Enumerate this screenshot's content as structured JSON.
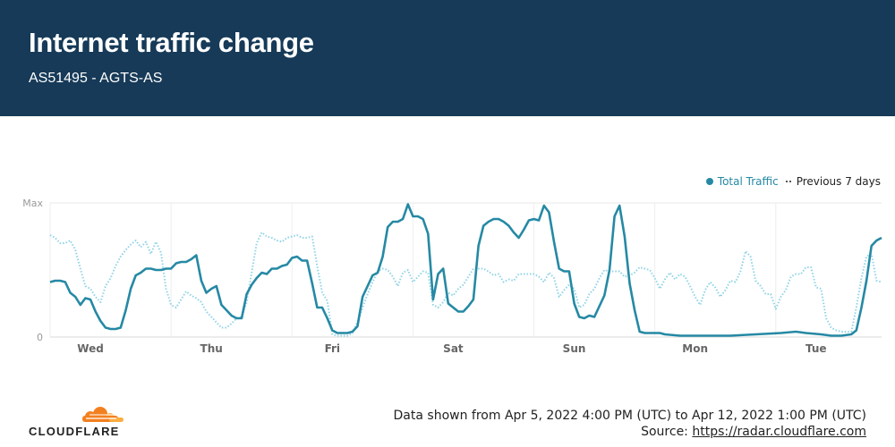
{
  "header": {
    "title": "Internet traffic change",
    "subtitle": "AS51495 - AGTS-AS"
  },
  "legend": {
    "total_label": "Total Traffic",
    "previous_label": "Previous 7 days"
  },
  "footer": {
    "range_text": "Data shown from Apr 5, 2022 4:00 PM (UTC) to Apr 12, 2022 1:00 PM (UTC)",
    "source_prefix": "Source: ",
    "source_link": "https://radar.cloudflare.com"
  },
  "logo": {
    "wordmark": "CLOUDFLARE",
    "icon": "cloud-icon"
  },
  "colors": {
    "header_bg": "#163a58",
    "total": "#2589a4",
    "previous": "#8fd3e6",
    "logo_orange": "#f38020",
    "logo_light": "#fbad41"
  },
  "chart_data": {
    "type": "line",
    "title": "Internet traffic change",
    "x_unit": "hours since Apr 5, 2022 4:00 PM (UTC)",
    "x_ticks": [
      {
        "x": 8,
        "label": "Wed"
      },
      {
        "x": 32,
        "label": "Thu"
      },
      {
        "x": 56,
        "label": "Fri"
      },
      {
        "x": 80,
        "label": "Sat"
      },
      {
        "x": 104,
        "label": "Sun"
      },
      {
        "x": 128,
        "label": "Mon"
      },
      {
        "x": 152,
        "label": "Tue"
      }
    ],
    "y_ticks": [
      {
        "y": 0,
        "label": "0"
      },
      {
        "y": 100,
        "label": "Max"
      }
    ],
    "ylim": [
      0,
      100
    ],
    "xlim": [
      0,
      165
    ],
    "grid": true,
    "legend_position": "top-right",
    "series": [
      {
        "name": "Total Traffic",
        "style": "solid",
        "points": [
          [
            0,
            41
          ],
          [
            1,
            42
          ],
          [
            2,
            42
          ],
          [
            3,
            41
          ],
          [
            4,
            33
          ],
          [
            5,
            30
          ],
          [
            6,
            24
          ],
          [
            7,
            29
          ],
          [
            8,
            28
          ],
          [
            9,
            19
          ],
          [
            10,
            12
          ],
          [
            11,
            7
          ],
          [
            12,
            6
          ],
          [
            13,
            6
          ],
          [
            14,
            7
          ],
          [
            15,
            20
          ],
          [
            16,
            36
          ],
          [
            17,
            46
          ],
          [
            18,
            48
          ],
          [
            19,
            51
          ],
          [
            20,
            51
          ],
          [
            21,
            50
          ],
          [
            22,
            50
          ],
          [
            23,
            51
          ],
          [
            24,
            51
          ],
          [
            25,
            55
          ],
          [
            26,
            56
          ],
          [
            27,
            56
          ],
          [
            28,
            58
          ],
          [
            29,
            61
          ],
          [
            30,
            42
          ],
          [
            31,
            33
          ],
          [
            32,
            36
          ],
          [
            33,
            38
          ],
          [
            34,
            24
          ],
          [
            35,
            20
          ],
          [
            36,
            16
          ],
          [
            37,
            14
          ],
          [
            38,
            14
          ],
          [
            39,
            32
          ],
          [
            40,
            39
          ],
          [
            41,
            44
          ],
          [
            42,
            48
          ],
          [
            43,
            47
          ],
          [
            44,
            51
          ],
          [
            45,
            51
          ],
          [
            46,
            53
          ],
          [
            47,
            54
          ],
          [
            48,
            59
          ],
          [
            49,
            60
          ],
          [
            50,
            57
          ],
          [
            51,
            57
          ],
          [
            52,
            40
          ],
          [
            53,
            22
          ],
          [
            54,
            22
          ],
          [
            55,
            14
          ],
          [
            56,
            5
          ],
          [
            57,
            3
          ],
          [
            58,
            3
          ],
          [
            59,
            3
          ],
          [
            60,
            4
          ],
          [
            61,
            8
          ],
          [
            62,
            30
          ],
          [
            63,
            38
          ],
          [
            64,
            46
          ],
          [
            65,
            48
          ],
          [
            66,
            60
          ],
          [
            67,
            82
          ],
          [
            68,
            86
          ],
          [
            69,
            86
          ],
          [
            70,
            88
          ],
          [
            71,
            99
          ],
          [
            72,
            90
          ],
          [
            73,
            90
          ],
          [
            74,
            88
          ],
          [
            75,
            77
          ],
          [
            76,
            28
          ],
          [
            77,
            47
          ],
          [
            78,
            51
          ],
          [
            79,
            25
          ],
          [
            80,
            22
          ],
          [
            81,
            19
          ],
          [
            82,
            19
          ],
          [
            83,
            23
          ],
          [
            84,
            28
          ],
          [
            85,
            68
          ],
          [
            86,
            83
          ],
          [
            87,
            86
          ],
          [
            88,
            88
          ],
          [
            89,
            88
          ],
          [
            90,
            86
          ],
          [
            91,
            83
          ],
          [
            92,
            78
          ],
          [
            93,
            74
          ],
          [
            94,
            80
          ],
          [
            95,
            87
          ],
          [
            96,
            88
          ],
          [
            97,
            87
          ],
          [
            98,
            98
          ],
          [
            99,
            93
          ],
          [
            100,
            71
          ],
          [
            101,
            51
          ],
          [
            102,
            49
          ],
          [
            103,
            49
          ],
          [
            104,
            25
          ],
          [
            105,
            15
          ],
          [
            106,
            14
          ],
          [
            107,
            16
          ],
          [
            108,
            15
          ],
          [
            109,
            23
          ],
          [
            110,
            31
          ],
          [
            111,
            50
          ],
          [
            112,
            90
          ],
          [
            113,
            98
          ],
          [
            114,
            75
          ],
          [
            115,
            40
          ],
          [
            116,
            20
          ],
          [
            117,
            4
          ],
          [
            118,
            3
          ],
          [
            119,
            3
          ],
          [
            120,
            3
          ],
          [
            121,
            3
          ],
          [
            122,
            2
          ],
          [
            125,
            1
          ],
          [
            130,
            1
          ],
          [
            135,
            1
          ],
          [
            140,
            2
          ],
          [
            145,
            3
          ],
          [
            148,
            4
          ],
          [
            150,
            3
          ],
          [
            153,
            2
          ],
          [
            155,
            1
          ],
          [
            157,
            1
          ],
          [
            159,
            2
          ],
          [
            160,
            5
          ],
          [
            161,
            22
          ],
          [
            162,
            42
          ],
          [
            163,
            68
          ],
          [
            164,
            72
          ],
          [
            165,
            74
          ]
        ]
      },
      {
        "name": "Previous 7 days",
        "style": "dotted",
        "points": [
          [
            0,
            76
          ],
          [
            1,
            74
          ],
          [
            2,
            70
          ],
          [
            3,
            70
          ],
          [
            4,
            72
          ],
          [
            5,
            65
          ],
          [
            6,
            51
          ],
          [
            7,
            38
          ],
          [
            8,
            36
          ],
          [
            9,
            30
          ],
          [
            10,
            26
          ],
          [
            11,
            38
          ],
          [
            12,
            44
          ],
          [
            13,
            53
          ],
          [
            14,
            60
          ],
          [
            15,
            65
          ],
          [
            16,
            69
          ],
          [
            17,
            72
          ],
          [
            18,
            67
          ],
          [
            19,
            71
          ],
          [
            20,
            62
          ],
          [
            21,
            71
          ],
          [
            22,
            63
          ],
          [
            23,
            36
          ],
          [
            24,
            24
          ],
          [
            25,
            22
          ],
          [
            26,
            28
          ],
          [
            27,
            34
          ],
          [
            28,
            31
          ],
          [
            29,
            29
          ],
          [
            30,
            26
          ],
          [
            31,
            19
          ],
          [
            32,
            15
          ],
          [
            33,
            11
          ],
          [
            34,
            7
          ],
          [
            35,
            7
          ],
          [
            36,
            10
          ],
          [
            37,
            14
          ],
          [
            38,
            15
          ],
          [
            39,
            26
          ],
          [
            40,
            48
          ],
          [
            41,
            70
          ],
          [
            42,
            78
          ],
          [
            43,
            75
          ],
          [
            44,
            74
          ],
          [
            45,
            72
          ],
          [
            46,
            71
          ],
          [
            47,
            74
          ],
          [
            48,
            75
          ],
          [
            49,
            76
          ],
          [
            50,
            74
          ],
          [
            51,
            74
          ],
          [
            52,
            75
          ],
          [
            53,
            53
          ],
          [
            54,
            33
          ],
          [
            55,
            27
          ],
          [
            56,
            2
          ],
          [
            57,
            1
          ],
          [
            58,
            1
          ],
          [
            59,
            1
          ],
          [
            60,
            3
          ],
          [
            61,
            11
          ],
          [
            62,
            22
          ],
          [
            63,
            32
          ],
          [
            64,
            41
          ],
          [
            65,
            49
          ],
          [
            66,
            51
          ],
          [
            67,
            50
          ],
          [
            68,
            45
          ],
          [
            69,
            38
          ],
          [
            70,
            48
          ],
          [
            71,
            50
          ],
          [
            72,
            41
          ],
          [
            73,
            45
          ],
          [
            74,
            49
          ],
          [
            75,
            48
          ],
          [
            76,
            24
          ],
          [
            77,
            22
          ],
          [
            78,
            26
          ],
          [
            79,
            33
          ],
          [
            80,
            31
          ],
          [
            81,
            36
          ],
          [
            82,
            39
          ],
          [
            83,
            45
          ],
          [
            84,
            51
          ],
          [
            85,
            51
          ],
          [
            86,
            51
          ],
          [
            87,
            49
          ],
          [
            88,
            46
          ],
          [
            89,
            47
          ],
          [
            90,
            41
          ],
          [
            91,
            43
          ],
          [
            92,
            42
          ],
          [
            93,
            47
          ],
          [
            94,
            47
          ],
          [
            95,
            47
          ],
          [
            96,
            47
          ],
          [
            97,
            45
          ],
          [
            98,
            41
          ],
          [
            99,
            48
          ],
          [
            100,
            44
          ],
          [
            101,
            30
          ],
          [
            102,
            35
          ],
          [
            103,
            39
          ],
          [
            104,
            36
          ],
          [
            105,
            22
          ],
          [
            106,
            24
          ],
          [
            107,
            32
          ],
          [
            108,
            36
          ],
          [
            109,
            44
          ],
          [
            110,
            50
          ],
          [
            111,
            49
          ],
          [
            112,
            49
          ],
          [
            113,
            49
          ],
          [
            114,
            45
          ],
          [
            115,
            46
          ],
          [
            116,
            48
          ],
          [
            117,
            52
          ],
          [
            118,
            51
          ],
          [
            119,
            50
          ],
          [
            120,
            44
          ],
          [
            121,
            36
          ],
          [
            122,
            43
          ],
          [
            123,
            48
          ],
          [
            124,
            43
          ],
          [
            125,
            47
          ],
          [
            126,
            45
          ],
          [
            127,
            38
          ],
          [
            128,
            30
          ],
          [
            129,
            24
          ],
          [
            130,
            35
          ],
          [
            131,
            41
          ],
          [
            132,
            37
          ],
          [
            133,
            30
          ],
          [
            134,
            35
          ],
          [
            135,
            42
          ],
          [
            136,
            41
          ],
          [
            137,
            49
          ],
          [
            138,
            64
          ],
          [
            139,
            60
          ],
          [
            140,
            42
          ],
          [
            141,
            38
          ],
          [
            142,
            32
          ],
          [
            143,
            32
          ],
          [
            144,
            21
          ],
          [
            145,
            30
          ],
          [
            146,
            35
          ],
          [
            147,
            45
          ],
          [
            148,
            47
          ],
          [
            149,
            47
          ],
          [
            150,
            52
          ],
          [
            151,
            52
          ],
          [
            152,
            37
          ],
          [
            153,
            36
          ],
          [
            154,
            14
          ],
          [
            155,
            7
          ],
          [
            156,
            5
          ],
          [
            157,
            4
          ],
          [
            158,
            4
          ],
          [
            159,
            4
          ],
          [
            160,
            22
          ],
          [
            161,
            44
          ],
          [
            162,
            60
          ],
          [
            163,
            62
          ],
          [
            164,
            42
          ],
          [
            165,
            41
          ]
        ]
      }
    ]
  }
}
